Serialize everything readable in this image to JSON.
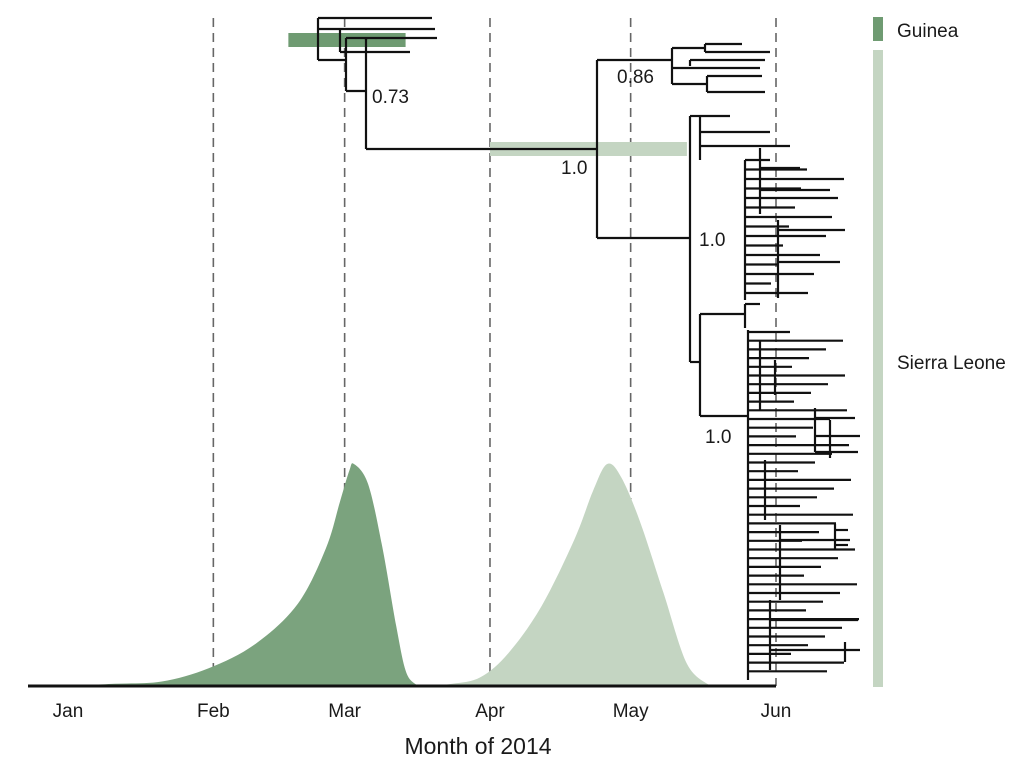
{
  "chart_data": {
    "type": "area",
    "subtype": "density-curves-with-time-scaled-phylogeny",
    "xlabel": "Month of 2014",
    "x_ticks": [
      "Jan",
      "Feb",
      "Mar",
      "Apr",
      "May",
      "Jun"
    ],
    "x_tick_dates": [
      "2014-01-01",
      "2014-02-01",
      "2014-03-01",
      "2014-04-01",
      "2014-05-01",
      "2014-06-01"
    ],
    "xlim": [
      "2014-01-01",
      "2014-06-01"
    ],
    "gridlines": "dashed vertical at month starts",
    "series": [
      {
        "name": "Guinea",
        "color": "#7ba37e",
        "density_points": [
          [
            "2014-01-01",
            0.0
          ],
          [
            "2014-01-11",
            0.01
          ],
          [
            "2014-01-21",
            0.02
          ],
          [
            "2014-01-31",
            0.08
          ],
          [
            "2014-02-10",
            0.19
          ],
          [
            "2014-02-19",
            0.37
          ],
          [
            "2014-02-25",
            0.62
          ],
          [
            "2014-02-28",
            0.83
          ],
          [
            "2014-03-02",
            0.97
          ],
          [
            "2014-03-03",
            1.0
          ],
          [
            "2014-03-06",
            0.91
          ],
          [
            "2014-03-09",
            0.63
          ],
          [
            "2014-03-12",
            0.27
          ],
          [
            "2014-03-14",
            0.07
          ],
          [
            "2014-03-16",
            0.01
          ],
          [
            "2014-03-18",
            0.0
          ]
        ],
        "hpd_interval": [
          "2014-02-17",
          "2014-03-14"
        ],
        "peak": "2014-03-03"
      },
      {
        "name": "Sierra Leone",
        "color": "#c4d5c2",
        "density_points": [
          [
            "2014-03-18",
            0.0
          ],
          [
            "2014-03-24",
            0.01
          ],
          [
            "2014-03-30",
            0.04
          ],
          [
            "2014-04-05",
            0.15
          ],
          [
            "2014-04-12",
            0.36
          ],
          [
            "2014-04-19",
            0.66
          ],
          [
            "2014-04-23",
            0.88
          ],
          [
            "2014-04-26",
            1.0
          ],
          [
            "2014-04-29",
            0.94
          ],
          [
            "2014-05-03",
            0.74
          ],
          [
            "2014-05-08",
            0.42
          ],
          [
            "2014-05-13",
            0.1
          ],
          [
            "2014-05-18",
            0.0
          ]
        ],
        "hpd_interval": [
          "2014-04-01",
          "2014-05-13"
        ],
        "peak": "2014-04-26"
      }
    ],
    "node_support_labels": [
      "0.73",
      "0.86",
      "1.0",
      "1.0",
      "1.0"
    ],
    "legend": {
      "placement": "right",
      "entries": [
        {
          "label": "Guinea",
          "color": "#6f9b72"
        },
        {
          "label": "Sierra Leone",
          "color": "#c4d5c2"
        }
      ]
    }
  }
}
